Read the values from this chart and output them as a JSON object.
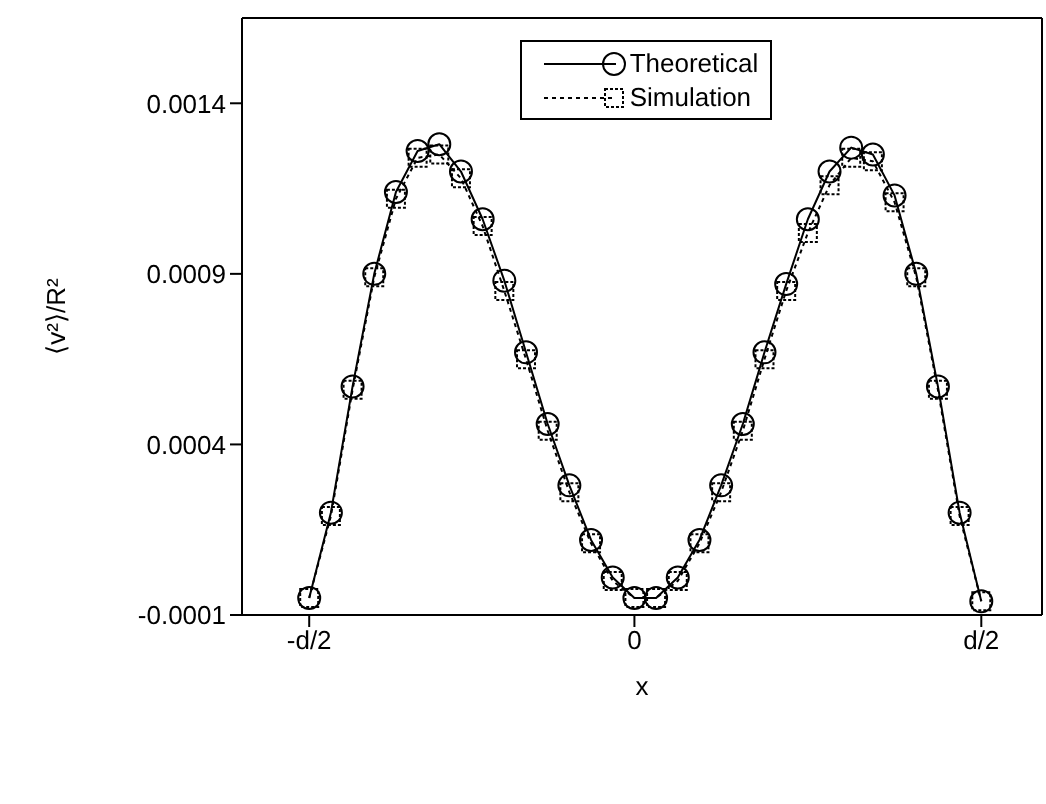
{
  "chart_data": {
    "type": "line",
    "xlabel": "x",
    "ylabel": "⟨v²⟩/R²",
    "ylim": [
      -0.0001,
      0.00165
    ],
    "yticks": [
      -0.0001,
      0.0004,
      0.0009,
      0.0014
    ],
    "grid": false,
    "legend": "top",
    "tick_labels": "xy",
    "categories": [
      "-d/2",
      null,
      null,
      null,
      null,
      null,
      null,
      null,
      null,
      null,
      null,
      null,
      null,
      null,
      null,
      "0",
      null,
      null,
      null,
      null,
      null,
      null,
      null,
      null,
      null,
      null,
      null,
      null,
      null,
      null,
      null,
      "d/2"
    ],
    "series": [
      {
        "name": "Theoretical",
        "color": "#000000",
        "marker": "circle",
        "line_style": "solid",
        "values": [
          -5e-05,
          0.0002,
          0.00057,
          0.0009,
          0.00114,
          0.00126,
          0.00128,
          0.0012,
          0.00106,
          0.00088,
          0.00067,
          0.00046,
          0.00028,
          0.00012,
          1e-05,
          -5e-05,
          -5e-05,
          1e-05,
          0.00012,
          0.00028,
          0.00046,
          0.00067,
          0.00087,
          0.00106,
          0.0012,
          0.00127,
          0.00125,
          0.00113,
          0.0009,
          0.00057,
          0.0002,
          -6e-05
        ]
      },
      {
        "name": "Simulation",
        "color": "#000000",
        "marker": "square",
        "line_style": "dotted",
        "values": [
          -5e-05,
          0.00019,
          0.00056,
          0.00089,
          0.00112,
          0.00124,
          0.00125,
          0.00118,
          0.00104,
          0.00085,
          0.00065,
          0.00044,
          0.00026,
          0.00011,
          0.0,
          -5e-05,
          -5e-05,
          0.0,
          0.00011,
          0.00026,
          0.00044,
          0.00065,
          0.00085,
          0.00102,
          0.00116,
          0.00124,
          0.00123,
          0.00111,
          0.00089,
          0.00056,
          0.00019,
          -6e-05
        ]
      }
    ]
  }
}
